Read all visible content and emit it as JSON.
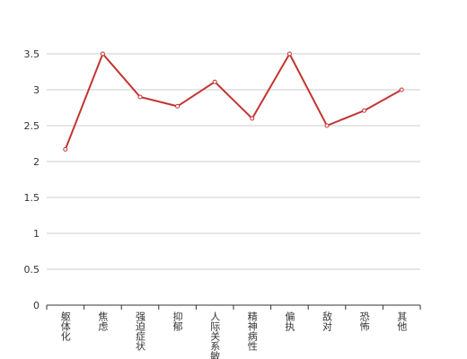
{
  "chart_data": {
    "type": "line",
    "categories": [
      "躯体化",
      "焦虑",
      "强迫症状",
      "抑郁",
      "人际关系敏感",
      "精神病性",
      "偏执",
      "敌对",
      "恐怖",
      "其他"
    ],
    "series": [
      {
        "color": "#c23531",
        "values": [
          2.17,
          3.5,
          2.9,
          2.77,
          3.11,
          2.6,
          3.5,
          2.5,
          2.71,
          3.0
        ]
      }
    ],
    "ylim": [
      0,
      3.5
    ],
    "yticks": [
      0,
      0.5,
      1,
      1.5,
      2,
      2.5,
      3,
      3.5
    ],
    "grid": true
  }
}
